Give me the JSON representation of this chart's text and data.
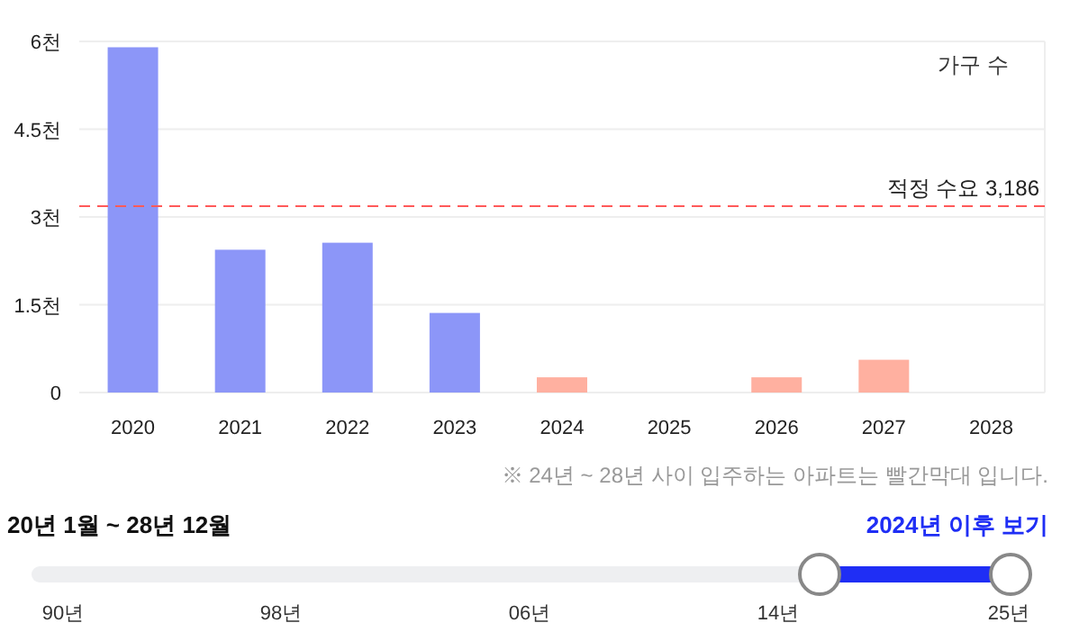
{
  "chart_data": {
    "type": "bar",
    "categories": [
      "2020",
      "2021",
      "2022",
      "2023",
      "2024",
      "2025",
      "2026",
      "2027",
      "2028"
    ],
    "values": [
      5.9,
      2.44,
      2.56,
      1.36,
      0.26,
      0,
      0.26,
      0.56,
      0
    ],
    "colors": [
      "#8c96f8",
      "#8c96f8",
      "#8c96f8",
      "#8c96f8",
      "#ffb0a0",
      "#ffb0a0",
      "#ffb0a0",
      "#ffb0a0",
      "#ffb0a0"
    ],
    "ylim": [
      0,
      6
    ],
    "yticks": [
      0,
      {
        "value": 1.5,
        "label": "1.5천"
      },
      {
        "value": 3,
        "label": "3천"
      },
      {
        "value": 4.5,
        "label": "4.5천"
      },
      {
        "value": 6,
        "label": "6천"
      }
    ],
    "grid": "y",
    "ref_lines": [
      {
        "axis": "y",
        "value": 3.186,
        "label": "적정 수요 3,186",
        "color": "#ff5a5a",
        "line_style": "dashed"
      }
    ],
    "annotations": [
      "가구 수",
      "※ 24년 ~ 28년 사이 입주하는 아파트는 빨간막대 입니다.",
      "20년 1월 ~ 28년 12월",
      "2024년 이후 보기",
      "90년",
      "98년",
      "06년",
      "14년",
      "25년"
    ]
  }
}
